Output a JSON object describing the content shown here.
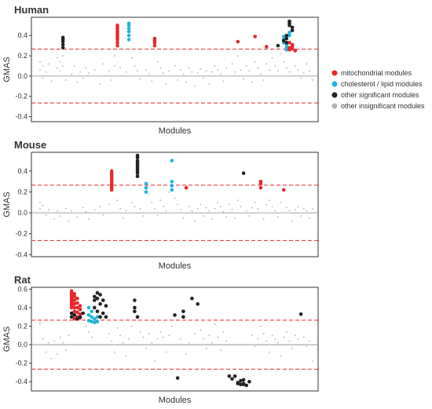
{
  "colors": {
    "mitochondrial": "#e8262b",
    "cholesterol": "#1fb4dc",
    "other_significant": "#222222",
    "other_insignificant": "#b5b5b5",
    "threshold_line": "#e8262b",
    "zero_line": "#888888",
    "frame": "#333333"
  },
  "legend": {
    "placement": "right",
    "items": [
      {
        "key": "mitochondrial",
        "label": "mitochondrial modules"
      },
      {
        "key": "cholesterol",
        "label": "cholesterol / lipid modules"
      },
      {
        "key": "other_significant",
        "label": "other significant modules"
      },
      {
        "key": "other_insignificant",
        "label": "other insignificant modules"
      }
    ]
  },
  "chart_data": [
    {
      "type": "scatter",
      "title": "Human",
      "xlabel": "Modules",
      "ylabel": "GMAS",
      "xlim": [
        0,
        100
      ],
      "ylim": [
        -0.45,
        0.58
      ],
      "yticks": [
        -0.4,
        -0.2,
        0.0,
        0.2,
        0.4
      ],
      "ytick_labels": [
        "-0.4",
        "-0.2",
        "0.0",
        "0.2",
        "0.4"
      ],
      "thresholds": [
        0.265,
        -0.265
      ],
      "zero_line": 0,
      "series": [
        {
          "key": "mitochondrial",
          "x": [
            30,
            30,
            30,
            30,
            30,
            30,
            30,
            30,
            30,
            30,
            43,
            43,
            43,
            43,
            72,
            78,
            82,
            90,
            90,
            90,
            91,
            91,
            91,
            92
          ],
          "y": [
            0.5,
            0.48,
            0.46,
            0.44,
            0.42,
            0.4,
            0.38,
            0.36,
            0.33,
            0.3,
            0.37,
            0.35,
            0.33,
            0.3,
            0.34,
            0.39,
            0.29,
            0.28,
            0.26,
            0.33,
            0.31,
            0.29,
            0.27,
            0.25
          ]
        },
        {
          "key": "cholesterol",
          "x": [
            34,
            34,
            34,
            34,
            34,
            34,
            88,
            88,
            88,
            89,
            89,
            89,
            90,
            90
          ],
          "y": [
            0.52,
            0.5,
            0.47,
            0.44,
            0.4,
            0.36,
            0.39,
            0.36,
            0.33,
            0.31,
            0.28,
            0.26,
            0.43,
            0.4
          ]
        },
        {
          "key": "other_significant",
          "x": [
            11,
            11,
            11,
            11,
            11,
            86,
            88,
            89,
            89,
            89,
            90,
            90,
            90,
            91,
            91
          ],
          "y": [
            0.38,
            0.36,
            0.34,
            0.31,
            0.28,
            0.3,
            0.35,
            0.4,
            0.37,
            0.33,
            0.54,
            0.52,
            0.5,
            0.48,
            0.45
          ]
        },
        {
          "key": "other_insignificant",
          "x": [
            3,
            3,
            4,
            4,
            5,
            6,
            6,
            7,
            9,
            9,
            10,
            10,
            11,
            11,
            12,
            14,
            15,
            16,
            17,
            18,
            19,
            20,
            22,
            24,
            25,
            27,
            28,
            29,
            29,
            31,
            33,
            35,
            36,
            37,
            38,
            40,
            41,
            42,
            44,
            45,
            46,
            47,
            48,
            50,
            51,
            52,
            53,
            54,
            55,
            56,
            57,
            58,
            59,
            60,
            61,
            62,
            63,
            64,
            65,
            66,
            67,
            68,
            70,
            71,
            72,
            73,
            74,
            75,
            76,
            77,
            78,
            79,
            80,
            81,
            82,
            83,
            84,
            85,
            86,
            87,
            88,
            89,
            90,
            92,
            93,
            94,
            95,
            96,
            97,
            98
          ],
          "y": [
            0.14,
            0.06,
            0.1,
            -0.02,
            0.04,
            0.12,
            0.0,
            -0.05,
            0.18,
            0.08,
            0.14,
            0.05,
            0.2,
            0.1,
            -0.04,
            0.02,
            0.1,
            -0.06,
            0.04,
            -0.02,
            0.08,
            0.03,
            0.06,
            -0.08,
            0.12,
            0.05,
            -0.04,
            0.2,
            0.1,
            0.08,
            0.04,
            0.18,
            0.1,
            0.05,
            -0.03,
            0.06,
            0.02,
            -0.05,
            0.14,
            0.08,
            0.03,
            -0.08,
            0.05,
            0.1,
            -0.04,
            0.06,
            0.02,
            -0.06,
            0.08,
            0.04,
            -0.1,
            0.03,
            0.07,
            -0.02,
            0.05,
            -0.08,
            0.04,
            0.1,
            0.06,
            0.02,
            -0.05,
            0.08,
            0.12,
            0.04,
            0.2,
            0.06,
            -0.03,
            0.1,
            0.05,
            -0.06,
            0.14,
            0.08,
            0.02,
            -0.04,
            0.12,
            0.06,
            0.18,
            0.1,
            0.05,
            0.22,
            0.14,
            0.08,
            0.04,
            0.1,
            0.06,
            -0.02,
            0.03,
            0.12,
            0.05,
            -0.04
          ]
        }
      ]
    },
    {
      "type": "scatter",
      "title": "Mouse",
      "xlabel": "Modules",
      "ylabel": "GMAS",
      "xlim": [
        0,
        100
      ],
      "ylim": [
        -0.42,
        0.58
      ],
      "yticks": [
        -0.4,
        -0.2,
        0.0,
        0.2,
        0.4
      ],
      "ytick_labels": [
        "-0.4",
        "-0.2",
        "0.0",
        "0.2",
        "0.4"
      ],
      "thresholds": [
        0.265,
        -0.265
      ],
      "zero_line": 0,
      "series": [
        {
          "key": "mitochondrial",
          "x": [
            28,
            28,
            28,
            28,
            28,
            28,
            28,
            28,
            28,
            28,
            54,
            80,
            80,
            80,
            88
          ],
          "y": [
            0.4,
            0.38,
            0.36,
            0.34,
            0.32,
            0.3,
            0.28,
            0.26,
            0.24,
            0.22,
            0.24,
            0.3,
            0.28,
            0.24,
            0.22
          ]
        },
        {
          "key": "cholesterol",
          "x": [
            40,
            40,
            40,
            49,
            49,
            49,
            49
          ],
          "y": [
            0.28,
            0.24,
            0.2,
            0.5,
            0.3,
            0.26,
            0.22
          ]
        },
        {
          "key": "other_significant",
          "x": [
            37,
            37,
            37,
            37,
            37,
            37,
            37,
            37,
            37,
            37,
            74
          ],
          "y": [
            0.55,
            0.53,
            0.5,
            0.48,
            0.46,
            0.44,
            0.42,
            0.4,
            0.38,
            0.35,
            0.38
          ]
        },
        {
          "key": "other_insignificant",
          "x": [
            3,
            3,
            4,
            5,
            6,
            8,
            9,
            10,
            12,
            13,
            14,
            16,
            18,
            19,
            20,
            22,
            24,
            25,
            27,
            30,
            31,
            32,
            33,
            35,
            36,
            38,
            39,
            41,
            42,
            43,
            44,
            45,
            46,
            47,
            48,
            50,
            51,
            52,
            53,
            55,
            56,
            57,
            58,
            59,
            60,
            61,
            62,
            63,
            64,
            65,
            66,
            67,
            68,
            69,
            70,
            71,
            72,
            73,
            75,
            76,
            77,
            78,
            79,
            81,
            82,
            83,
            84,
            85,
            86,
            87,
            89,
            90,
            91,
            92,
            93,
            94,
            95,
            96,
            97,
            98
          ],
          "y": [
            0.1,
            0.04,
            0.07,
            -0.02,
            0.03,
            -0.06,
            0.02,
            -0.03,
            0.04,
            -0.08,
            0.02,
            -0.04,
            0.05,
            0.01,
            -0.06,
            0.03,
            0.06,
            -0.02,
            0.08,
            0.12,
            0.04,
            -0.05,
            0.02,
            0.1,
            0.06,
            0.04,
            -0.03,
            0.18,
            0.1,
            0.04,
            -0.02,
            0.12,
            0.06,
            0.02,
            0.2,
            0.14,
            0.08,
            0.03,
            -0.05,
            0.06,
            0.02,
            -0.08,
            0.04,
            0.08,
            -0.03,
            0.05,
            0.02,
            -0.06,
            0.04,
            0.1,
            0.06,
            0.01,
            -0.04,
            0.08,
            0.03,
            -0.05,
            0.12,
            0.06,
            0.02,
            -0.03,
            0.05,
            0.1,
            0.04,
            -0.06,
            0.08,
            0.12,
            0.06,
            0.02,
            -0.04,
            0.1,
            0.05,
            0.02,
            -0.08,
            0.03,
            0.06,
            -0.03,
            0.04,
            0.02,
            -0.05,
            0.04
          ]
        }
      ]
    },
    {
      "type": "scatter",
      "title": "Rat",
      "xlabel": "Modules",
      "ylabel": "GMAS",
      "xlim": [
        0,
        100
      ],
      "ylim": [
        -0.5,
        0.62
      ],
      "yticks": [
        -0.4,
        -0.2,
        0.0,
        0.2,
        0.4,
        0.6
      ],
      "ytick_labels": [
        "-0.4",
        "-0.2",
        "0.0",
        "0.2",
        "0.4",
        "0.6"
      ],
      "thresholds": [
        0.265,
        -0.265
      ],
      "zero_line": 0,
      "series": [
        {
          "key": "mitochondrial",
          "x": [
            14,
            14,
            14,
            14,
            14,
            14,
            14,
            14,
            14,
            14,
            15,
            15,
            15,
            15,
            15,
            15,
            15,
            15,
            16,
            16,
            16,
            16,
            16,
            16,
            17,
            17,
            17,
            17
          ],
          "y": [
            0.58,
            0.56,
            0.54,
            0.52,
            0.5,
            0.48,
            0.46,
            0.44,
            0.42,
            0.4,
            0.55,
            0.52,
            0.48,
            0.44,
            0.4,
            0.36,
            0.32,
            0.28,
            0.5,
            0.45,
            0.4,
            0.35,
            0.3,
            0.28,
            0.42,
            0.38,
            0.33,
            0.29
          ]
        },
        {
          "key": "cholesterol",
          "x": [
            20,
            20,
            20,
            21,
            21,
            21,
            22,
            22,
            23,
            23
          ],
          "y": [
            0.4,
            0.32,
            0.26,
            0.36,
            0.3,
            0.25,
            0.28,
            0.24,
            0.3,
            0.25
          ]
        },
        {
          "key": "other_significant",
          "x": [
            14,
            14,
            15,
            16,
            17,
            18,
            22,
            22,
            22,
            23,
            23,
            23,
            24,
            24,
            24,
            25,
            25,
            26,
            26,
            36,
            36,
            36,
            37,
            50,
            51,
            53,
            53,
            56,
            58,
            69,
            70,
            71,
            72,
            72,
            73,
            73,
            74,
            74,
            74,
            75,
            76,
            94
          ],
          "y": [
            0.34,
            0.3,
            0.32,
            0.28,
            0.3,
            0.34,
            0.52,
            0.48,
            0.4,
            0.56,
            0.5,
            0.36,
            0.54,
            0.44,
            0.3,
            0.48,
            0.34,
            0.42,
            0.3,
            0.48,
            0.4,
            0.36,
            0.3,
            0.32,
            -0.36,
            0.36,
            0.3,
            0.5,
            0.44,
            -0.34,
            -0.37,
            -0.34,
            -0.41,
            -0.42,
            -0.43,
            -0.39,
            -0.42,
            -0.38,
            -0.43,
            -0.44,
            -0.4,
            0.33
          ]
        },
        {
          "key": "other_insignificant",
          "x": [
            3,
            3,
            4,
            5,
            6,
            7,
            8,
            9,
            10,
            11,
            12,
            13,
            19,
            20,
            21,
            27,
            28,
            29,
            30,
            31,
            32,
            33,
            34,
            35,
            38,
            39,
            40,
            41,
            42,
            43,
            44,
            45,
            46,
            47,
            48,
            49,
            52,
            54,
            55,
            57,
            59,
            60,
            61,
            62,
            63,
            64,
            65,
            66,
            67,
            68,
            77,
            78,
            79,
            80,
            81,
            82,
            83,
            84,
            85,
            86,
            87,
            88,
            89,
            90,
            91,
            92,
            93,
            95,
            96,
            97,
            98
          ],
          "y": [
            0.24,
            0.22,
            0.06,
            -0.08,
            0.02,
            -0.15,
            0.04,
            -0.1,
            0.08,
            0.02,
            -0.06,
            0.1,
            0.2,
            0.14,
            0.08,
            0.12,
            0.04,
            -0.08,
            0.18,
            0.1,
            0.02,
            -0.12,
            0.06,
            0.2,
            0.14,
            0.08,
            -0.04,
            0.12,
            0.02,
            -0.18,
            0.06,
            0.14,
            0.08,
            -0.08,
            0.1,
            0.2,
            0.06,
            -0.1,
            0.02,
            0.12,
            0.16,
            0.06,
            -0.04,
            0.1,
            0.02,
            0.22,
            0.08,
            -0.06,
            0.14,
            0.04,
            0.1,
            -0.02,
            0.06,
            0.2,
            0.12,
            0.04,
            -0.08,
            0.1,
            0.06,
            0.02,
            -0.12,
            0.08,
            0.14,
            0.04,
            -0.04,
            0.1,
            0.06,
            0.08,
            -0.02,
            0.04,
            -0.18
          ]
        }
      ]
    }
  ]
}
